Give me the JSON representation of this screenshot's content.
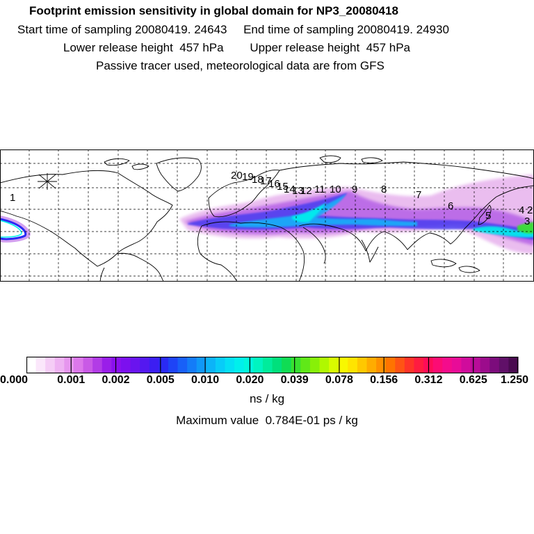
{
  "titles": {
    "line1": "Footprint emission sensitivity in global domain for NP3_20080418",
    "line2": "Start time of sampling 20080419. 24643     End time of sampling 20080419. 24930",
    "line3": "Lower release height  457 hPa        Upper release height  457 hPa",
    "line4": "Passive tracer used, meteorological data are from GFS"
  },
  "trajectory_labels": [
    "1",
    "2",
    "3",
    "4",
    "5",
    "6",
    "7",
    "8",
    "9",
    "10",
    "11",
    "12",
    "13",
    "14",
    "15",
    "16",
    "17",
    "18",
    "19",
    "20"
  ],
  "colorbar": {
    "tick_labels": [
      "0.000",
      "0.001",
      "0.002",
      "0.005",
      "0.010",
      "0.020",
      "0.039",
      "0.078",
      "0.156",
      "0.312",
      "0.625",
      "1.250"
    ],
    "colors": [
      "#ffffff",
      "#fbe7fb",
      "#f5cdf6",
      "#eeb2f2",
      "#e696ee",
      "#dc78ea",
      "#c95ae6",
      "#b23ce6",
      "#9a1ee9",
      "#8a10ee",
      "#7c10ef",
      "#6a14ef",
      "#5418f0",
      "#3c1ef2",
      "#2a2af4",
      "#1e44f6",
      "#1860f8",
      "#147cf8",
      "#1098f8",
      "#0cb4f8",
      "#08ccf8",
      "#04e0f4",
      "#00f0ec",
      "#00f8dc",
      "#00f4c0",
      "#00ec9c",
      "#00e07c",
      "#10dc54",
      "#38e030",
      "#60e818",
      "#88f008",
      "#b0f800",
      "#d8fc00",
      "#f8f800",
      "#ffe400",
      "#ffc800",
      "#ffac00",
      "#ff9000",
      "#ff7400",
      "#ff5414",
      "#ff3428",
      "#ff1c40",
      "#ff0c58",
      "#fc0c74",
      "#f40c8c",
      "#e80c98",
      "#d00c9c",
      "#b80c98",
      "#9c0c8c",
      "#7c0c7c",
      "#601068",
      "#4a0a50"
    ]
  },
  "units": "ns / kg",
  "max_value_text": "Maximum value  0.784E-01 ps / kg"
}
